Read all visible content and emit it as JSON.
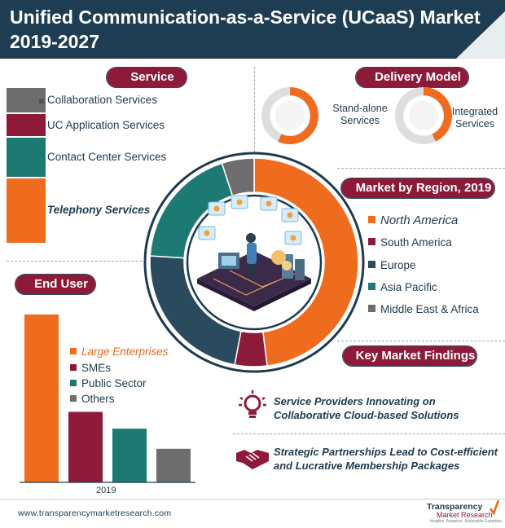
{
  "title": {
    "line1": "Unified Communication-as-a-Service (UCaaS) Market",
    "line2": "2019-2027"
  },
  "sections": {
    "service": "Service",
    "delivery_model": "Delivery Model",
    "market_by_region": "Market by Region, 2019",
    "end_user": "End User",
    "key_findings": "Key Market Findings"
  },
  "colors": {
    "orange": "#ef6c1e",
    "maroon": "#8e1a3a",
    "teal": "#1d7a72",
    "navy": "#2a4a5e",
    "gray": "#6e6e6e",
    "title_bg": "#1f3d52"
  },
  "icons": [
    "lightbulb-icon",
    "handshake-icon",
    "cloud-network-illustration",
    "checkmark-logo-icon"
  ],
  "chart_data": [
    {
      "type": "bar",
      "name": "service",
      "categories": [
        "Collaboration Services",
        "UC Application Services",
        "Contact Center Services",
        "Telephony Services"
      ],
      "values": [
        11,
        10,
        17,
        28
      ],
      "highlight": "Telephony Services"
    },
    {
      "type": "pie",
      "name": "delivery_model",
      "categories": [
        "Stand-alone Services",
        "Integrated Services"
      ],
      "values": [
        57,
        43
      ]
    },
    {
      "type": "pie",
      "name": "market_by_region",
      "title": "Market by Region, 2019",
      "categories": [
        "North America",
        "South America",
        "Europe",
        "Asia Pacific",
        "Middle East & Africa"
      ],
      "values": [
        48,
        5,
        23,
        19,
        5
      ],
      "highlight": "North America"
    },
    {
      "type": "bar",
      "name": "end_user",
      "categories": [
        "Large Enterprises",
        "SMEs",
        "Public Sector",
        "Others"
      ],
      "values": [
        100,
        42,
        32,
        20
      ],
      "xlabel": "2019",
      "highlight": "Large Enterprises"
    }
  ],
  "findings": [
    {
      "icon": "lightbulb-icon",
      "line1": "Service Providers Innovating on",
      "line2": "Collaborative Cloud-based Solutions"
    },
    {
      "icon": "handshake-icon",
      "line1": "Strategic Partnerships Lead to Cost-efficient",
      "line2": "and Lucrative Membership Packages"
    }
  ],
  "footer": {
    "url": "www.transparencymarketresearch.com",
    "logo_line1": "Transparency",
    "logo_line2": "Market Research",
    "logo_line3": "Insights. Analytics. Actionable Expertise."
  }
}
